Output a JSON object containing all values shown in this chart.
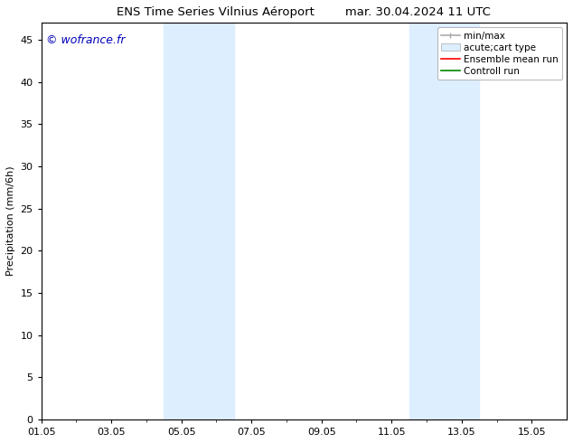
{
  "title": "ENS Time Series Vilnius Aéroport        mar. 30.04.2024 11 UTC",
  "ylabel": "Precipitation (mm/6h)",
  "watermark": "© wofrance.fr",
  "watermark_color": "#0000bb",
  "ylim": [
    0,
    47
  ],
  "yticks": [
    0,
    5,
    10,
    15,
    20,
    25,
    30,
    35,
    40,
    45
  ],
  "xtick_labels": [
    "01.05",
    "03.05",
    "05.05",
    "07.05",
    "09.05",
    "11.05",
    "13.05",
    "15.05"
  ],
  "xtick_positions": [
    0,
    2,
    4,
    6,
    8,
    10,
    12,
    14
  ],
  "xlim": [
    0,
    15
  ],
  "bg_color": "#ffffff",
  "shaded_regions": [
    {
      "x_start": 3.5,
      "x_end": 5.5,
      "color": "#ddeeff"
    },
    {
      "x_start": 10.5,
      "x_end": 12.5,
      "color": "#ddeeff"
    }
  ],
  "legend_labels": [
    "min/max",
    "acute;cart type",
    "Ensemble mean run",
    "Controll run"
  ],
  "legend_colors": [
    "#aaaaaa",
    "#ddeeff",
    "#ff0000",
    "#008800"
  ],
  "font_size_title": 9.5,
  "font_size_axis": 8,
  "font_size_legend": 7.5,
  "font_size_watermark": 9,
  "font_size_ytick": 8,
  "font_size_xtick": 8
}
